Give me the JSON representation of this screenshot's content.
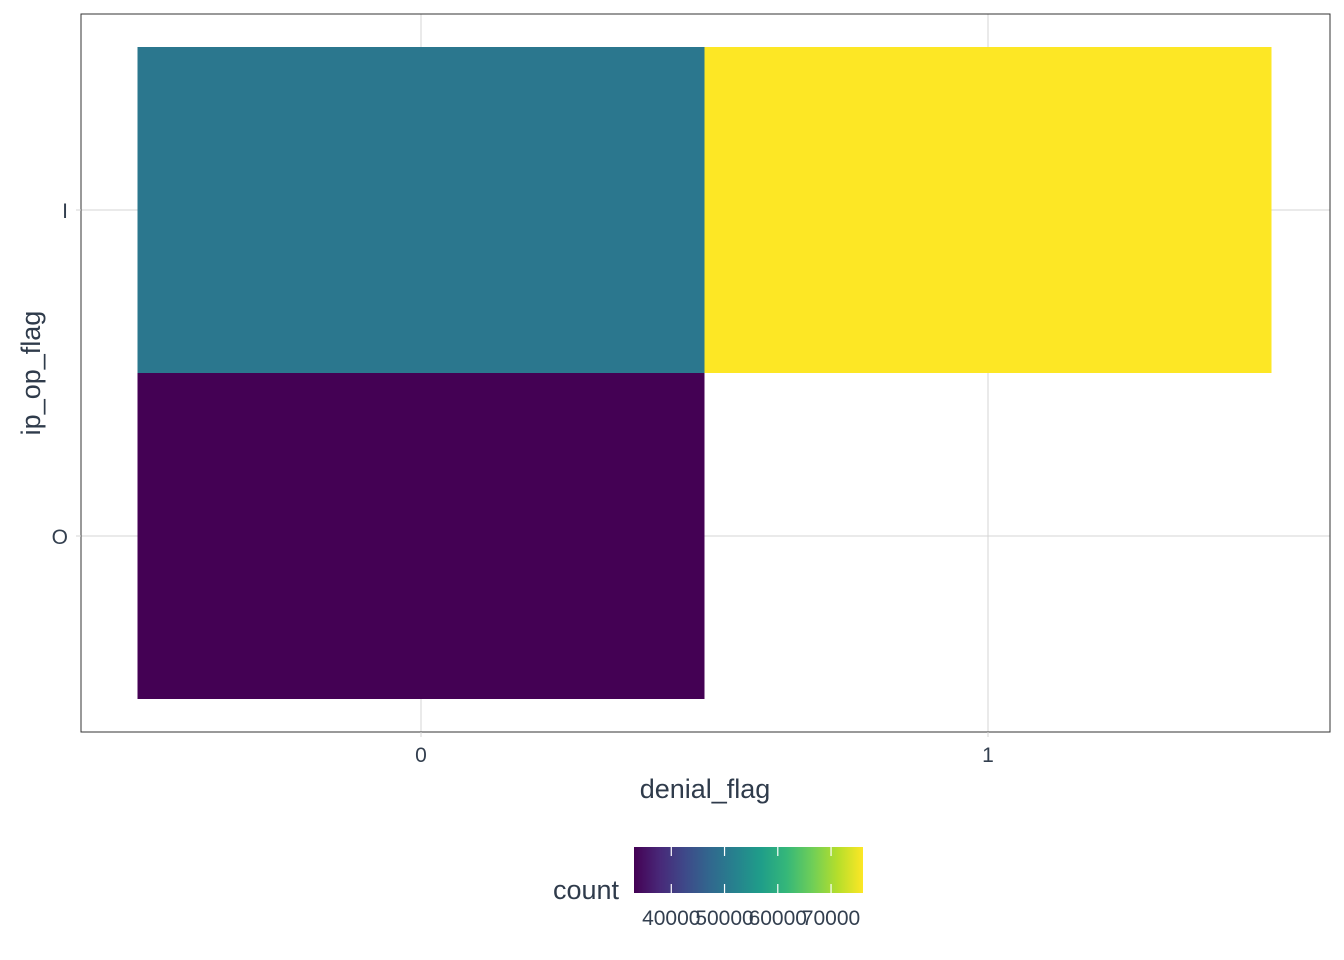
{
  "chart_data": {
    "type": "heatmap",
    "x_categories": [
      "0",
      "1"
    ],
    "y_categories": [
      "I",
      "O"
    ],
    "cells": [
      {
        "x": "0",
        "y": "I",
        "count": 50000
      },
      {
        "x": "1",
        "y": "I",
        "count": 76000
      },
      {
        "x": "0",
        "y": "O",
        "count": 33000
      }
    ],
    "xlabel": "denial_flag",
    "ylabel": "ip_op_flag",
    "legend": {
      "title": "count",
      "position": "bottom",
      "range": [
        33000,
        76000
      ],
      "ticks": [
        40000,
        50000,
        60000,
        70000
      ],
      "tick_labels": [
        "40000",
        "50000",
        "60000",
        "70000"
      ],
      "colormap": "viridis"
    },
    "grid": true,
    "colors": {
      "viridis_stops": [
        "#440154",
        "#482878",
        "#3e4989",
        "#31688e",
        "#26828e",
        "#1f9e89",
        "#35b779",
        "#6ece58",
        "#b5de2b",
        "#fde725"
      ],
      "grid": "#d4d4d4",
      "panel_border": "#333333"
    }
  }
}
